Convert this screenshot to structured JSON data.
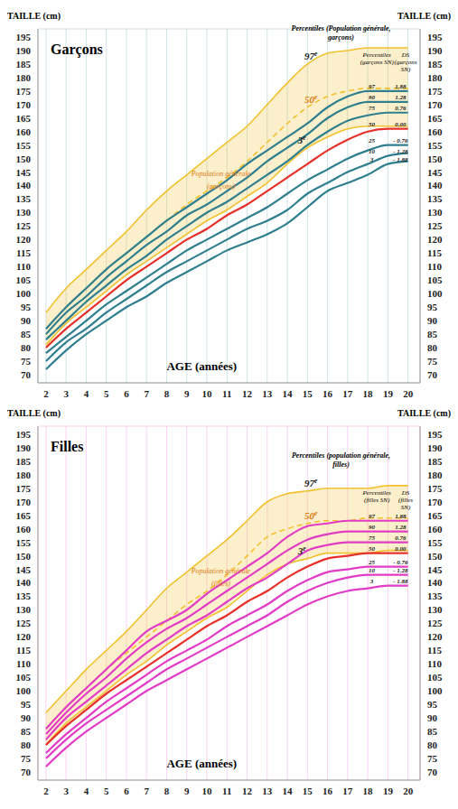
{
  "chart_data": [
    {
      "type": "line",
      "title": "Garçons",
      "y_label": "TAILLE (cm)",
      "x_label": "AGE (années)",
      "reference_title": "Percentiles (Population générale, garçons)",
      "series_title": "Percentiles (garçons SN)",
      "ds_title": "DS (garçons SN)",
      "band_label": "Population générale (garçons)",
      "x": [
        2,
        3,
        4,
        5,
        6,
        7,
        8,
        9,
        10,
        11,
        12,
        13,
        14,
        15,
        16,
        17,
        18,
        19,
        20
      ],
      "xlim": [
        1.6,
        20.6
      ],
      "xticks": [
        2,
        3,
        4,
        5,
        6,
        7,
        8,
        9,
        10,
        11,
        12,
        13,
        14,
        15,
        16,
        17,
        18,
        19,
        20
      ],
      "ylim": [
        67,
        198
      ],
      "yticks": [
        70,
        75,
        80,
        85,
        90,
        95,
        100,
        105,
        110,
        115,
        120,
        125,
        130,
        135,
        140,
        145,
        150,
        155,
        160,
        165,
        170,
        175,
        180,
        185,
        190,
        195
      ],
      "grid": true,
      "reference_series": [
        {
          "name": "97e",
          "color": "#f2c12e",
          "line_style": "solid",
          "values": [
            93,
            102,
            109,
            116,
            123,
            131,
            138,
            144,
            150,
            156,
            162,
            170,
            178,
            185,
            189,
            190,
            191,
            191,
            191
          ]
        },
        {
          "name": "50e",
          "color": "#f2c12e",
          "line_style": "dashed",
          "values": [
            87,
            95,
            102,
            109,
            115,
            121,
            127,
            133,
            138,
            143,
            149,
            156,
            163,
            169,
            173,
            175,
            176,
            176,
            176
          ]
        },
        {
          "name": "3e",
          "color": "#f2c12e",
          "line_style": "solid",
          "values": [
            81,
            89,
            95,
            101,
            107,
            112,
            117,
            122,
            127,
            131,
            136,
            141,
            148,
            154,
            158,
            161,
            162,
            162,
            162
          ]
        }
      ],
      "series": [
        {
          "name": "97",
          "ds": "1.88",
          "color": "#2f7f8f",
          "values": [
            87,
            95,
            102,
            109,
            115,
            121,
            127,
            132,
            137,
            142,
            148,
            153,
            158,
            163,
            169,
            173,
            175,
            175,
            175
          ]
        },
        {
          "name": "90",
          "ds": "1.28",
          "color": "#2f7f8f",
          "values": [
            85,
            93,
            99,
            106,
            112,
            118,
            123,
            129,
            133,
            138,
            143,
            149,
            154,
            159,
            165,
            169,
            171,
            171,
            171
          ]
        },
        {
          "name": "75",
          "ds": "0.76",
          "color": "#2f7f8f",
          "values": [
            83,
            90,
            97,
            103,
            109,
            114,
            120,
            125,
            130,
            134,
            139,
            144,
            149,
            155,
            160,
            164,
            166,
            167,
            167
          ]
        },
        {
          "name": "50",
          "ds": "0.00",
          "color": "#e8302a",
          "values": [
            80,
            87,
            93,
            99,
            105,
            110,
            115,
            120,
            124,
            129,
            133,
            138,
            143,
            148,
            153,
            157,
            160,
            161,
            161
          ]
        },
        {
          "name": "25",
          "ds": "- 0.76",
          "color": "#2f7f8f",
          "values": [
            78,
            84,
            90,
            96,
            101,
            106,
            111,
            116,
            120,
            124,
            128,
            132,
            137,
            142,
            146,
            150,
            153,
            155,
            155
          ]
        },
        {
          "name": "10",
          "ds": "- 1.28",
          "color": "#2f7f8f",
          "values": [
            75,
            82,
            87,
            93,
            98,
            103,
            108,
            112,
            116,
            120,
            124,
            127,
            131,
            137,
            141,
            145,
            148,
            151,
            152
          ]
        },
        {
          "name": "3",
          "ds": "- 1.88",
          "color": "#2f7f8f",
          "values": [
            72,
            79,
            85,
            90,
            95,
            99,
            104,
            108,
            112,
            116,
            119,
            122,
            126,
            132,
            138,
            141,
            144,
            148,
            149
          ]
        }
      ]
    },
    {
      "type": "line",
      "title": "Filles",
      "y_label": "TAILLE (cm)",
      "x_label": "AGE (années)",
      "reference_title": "Percentiles (population générale, filles)",
      "series_title": "Percentiles (filles SN)",
      "ds_title": "DS (filles SN)",
      "band_label": "Population générale (filles)",
      "x": [
        2,
        3,
        4,
        5,
        6,
        7,
        8,
        9,
        10,
        11,
        12,
        13,
        14,
        15,
        16,
        17,
        18,
        19,
        20
      ],
      "xlim": [
        1.6,
        20.6
      ],
      "xticks": [
        2,
        3,
        4,
        5,
        6,
        7,
        8,
        9,
        10,
        11,
        12,
        13,
        14,
        15,
        16,
        17,
        18,
        19,
        20
      ],
      "ylim": [
        67,
        198
      ],
      "yticks": [
        70,
        75,
        80,
        85,
        90,
        95,
        100,
        105,
        110,
        115,
        120,
        125,
        130,
        135,
        140,
        145,
        150,
        155,
        160,
        165,
        170,
        175,
        180,
        185,
        190,
        195
      ],
      "grid": true,
      "reference_series": [
        {
          "name": "97e",
          "color": "#f2c12e",
          "line_style": "solid",
          "values": [
            92,
            100,
            108,
            115,
            122,
            130,
            138,
            144,
            150,
            156,
            163,
            170,
            173,
            174,
            175,
            175,
            175,
            176,
            176
          ]
        },
        {
          "name": "50e",
          "color": "#f2c12e",
          "line_style": "dashed",
          "values": [
            86,
            94,
            101,
            108,
            114,
            120,
            126,
            132,
            137,
            143,
            150,
            157,
            160,
            162,
            163,
            163,
            164,
            164,
            164
          ]
        },
        {
          "name": "3e",
          "color": "#f2c12e",
          "line_style": "solid",
          "values": [
            80,
            88,
            94,
            100,
            106,
            111,
            117,
            122,
            127,
            131,
            137,
            143,
            147,
            149,
            151,
            151,
            151,
            152,
            152
          ]
        }
      ],
      "series": [
        {
          "name": "97",
          "ds": "1.88",
          "color": "#e23cc6",
          "values": [
            86,
            94,
            101,
            108,
            115,
            122,
            126,
            130,
            136,
            141,
            146,
            151,
            157,
            161,
            162,
            163,
            163,
            163,
            163
          ]
        },
        {
          "name": "90",
          "ds": "1.28",
          "color": "#e23cc6",
          "values": [
            84,
            92,
            99,
            105,
            112,
            118,
            123,
            127,
            132,
            137,
            142,
            147,
            152,
            156,
            158,
            159,
            159,
            159,
            159
          ]
        },
        {
          "name": "75",
          "ds": "0.76",
          "color": "#e23cc6",
          "values": [
            82,
            90,
            96,
            102,
            108,
            114,
            119,
            124,
            128,
            133,
            138,
            142,
            147,
            152,
            154,
            155,
            155,
            155,
            155
          ]
        },
        {
          "name": "50",
          "ds": "0.00",
          "color": "#e8302a",
          "values": [
            80,
            87,
            93,
            99,
            104,
            109,
            114,
            119,
            124,
            128,
            133,
            137,
            142,
            146,
            149,
            150,
            151,
            151,
            151
          ]
        },
        {
          "name": "25",
          "ds": "- 0.76",
          "color": "#e23cc6",
          "values": [
            77,
            84,
            90,
            96,
            101,
            106,
            111,
            115,
            119,
            124,
            128,
            132,
            137,
            141,
            144,
            145,
            146,
            146,
            146
          ]
        },
        {
          "name": "10",
          "ds": "- 1.28",
          "color": "#e23cc6",
          "values": [
            75,
            82,
            88,
            93,
            98,
            103,
            108,
            112,
            116,
            120,
            124,
            128,
            133,
            137,
            140,
            142,
            143,
            143,
            143
          ]
        },
        {
          "name": "3",
          "ds": "- 1.88",
          "color": "#e23cc6",
          "values": [
            72,
            79,
            85,
            90,
            95,
            100,
            104,
            108,
            112,
            116,
            120,
            124,
            128,
            132,
            135,
            137,
            138,
            139,
            139
          ]
        }
      ]
    }
  ]
}
